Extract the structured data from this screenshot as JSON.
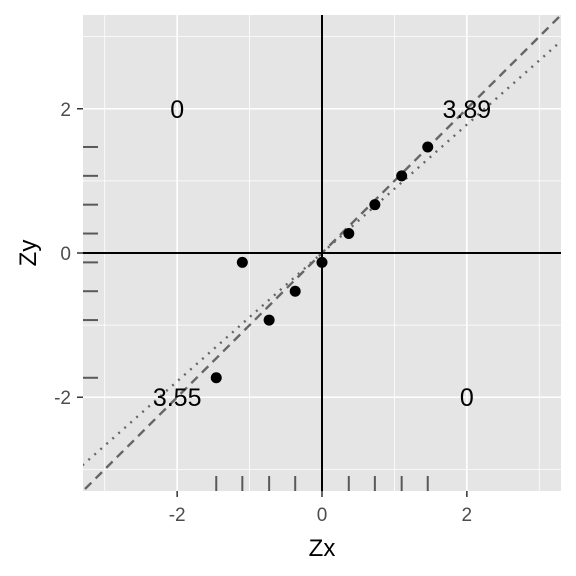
{
  "chart_data": {
    "type": "scatter",
    "xlabel": "Zx",
    "ylabel": "Zy",
    "xlim": [
      -3.3,
      3.3
    ],
    "ylim": [
      -3.3,
      3.3
    ],
    "x_ticks": [
      -2,
      0,
      2
    ],
    "x_tick_labels": [
      "-2",
      "0",
      "2"
    ],
    "y_ticks": [
      -2,
      0,
      2
    ],
    "y_tick_labels": [
      "-2",
      "0",
      "2"
    ],
    "grid": true,
    "points": {
      "x": [
        -1.46,
        -1.1,
        -0.73,
        -0.37,
        0.0,
        0.37,
        0.73,
        1.1,
        1.46
      ],
      "y": [
        -1.73,
        -0.13,
        -0.93,
        -0.53,
        -0.13,
        0.27,
        0.67,
        1.07,
        1.47
      ]
    },
    "rug_x": [
      -1.46,
      -1.1,
      -0.73,
      -0.37,
      0.0,
      0.37,
      0.73,
      1.1,
      1.46
    ],
    "rug_y": [
      -1.73,
      -0.93,
      -0.53,
      -0.13,
      0.27,
      0.67,
      1.07,
      1.47
    ],
    "reference_lines": [
      {
        "style": "dashed",
        "slope": 1.0,
        "intercept": 0
      },
      {
        "style": "dotted",
        "slope": 0.89,
        "intercept": 0
      }
    ],
    "quadrant_annotations": [
      {
        "text": "0",
        "x": -2,
        "y": 2
      },
      {
        "text": "3.89",
        "x": 2,
        "y": 2
      },
      {
        "text": "3.55",
        "x": -2,
        "y": -2
      },
      {
        "text": "0",
        "x": 2,
        "y": -2
      }
    ]
  }
}
